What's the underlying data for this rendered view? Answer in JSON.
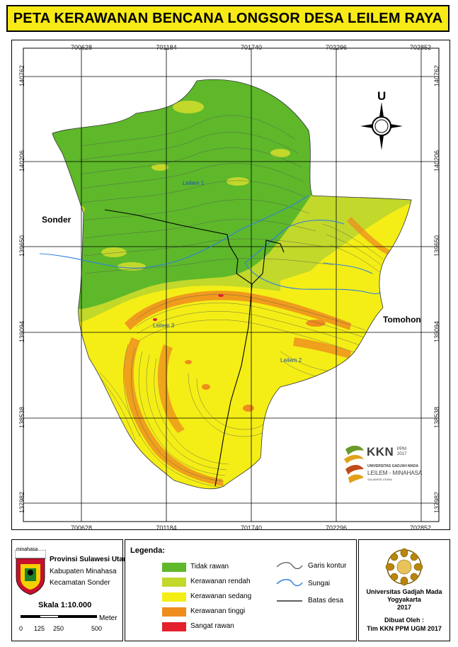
{
  "title": "PETA KERAWANAN  BENCANA LONGSOR DESA LEILEM RAYA",
  "grid": {
    "x_ticks": [
      "700628",
      "701184",
      "701740",
      "702296",
      "702852"
    ],
    "y_ticks": [
      "140762",
      "140206",
      "139650",
      "139094",
      "138538",
      "137982"
    ]
  },
  "places": {
    "sonder": "Sonder",
    "tomohon": "Tomohon"
  },
  "villages": {
    "leilem1": "Leilem 1",
    "leilem2": "Leilem 2",
    "leilem3": "Leilem 3"
  },
  "north_letter": "U",
  "kkn": {
    "title": "KKN",
    "ppm": "PPM",
    "year": "2017",
    "university": "UNIVERSITAS GADJAH MADA",
    "village": "LEILEM - MINAHASA",
    "province": "SULAWESI UTARA"
  },
  "admin": {
    "emblem_text": "minahasa",
    "province": "Provinsi Sulawesi Utara",
    "regency": "Kabupaten Minahasa",
    "district": "Kecamatan Sonder",
    "scale": "Skala 1:10.000",
    "scale_labels": [
      "0",
      "125",
      "250",
      "500"
    ],
    "scale_unit": "Meter"
  },
  "legend": {
    "title": "Legenda:",
    "classes": [
      {
        "label": "Tidak rawan",
        "color": "#5eb82a"
      },
      {
        "label": "Kerawanan rendah",
        "color": "#c2d82b"
      },
      {
        "label": "Kerawanan sedang",
        "color": "#f4ee16"
      },
      {
        "label": "Kerawanan tinggi",
        "color": "#ee8c1e"
      },
      {
        "label": "Sangat rawan",
        "color": "#e3202c"
      }
    ],
    "lines": [
      {
        "label": "Garis kontur",
        "color": "#555555"
      },
      {
        "label": "Sungai",
        "color": "#2f7fe0"
      },
      {
        "label": "Batas desa",
        "color": "#000000"
      }
    ]
  },
  "credits": {
    "university": "Universitas Gadjah Mada",
    "city": "Yogyakarta",
    "year": "2017",
    "made_by": "Dibuat Oleh :",
    "team": "Tim KKN PPM UGM 2017"
  }
}
